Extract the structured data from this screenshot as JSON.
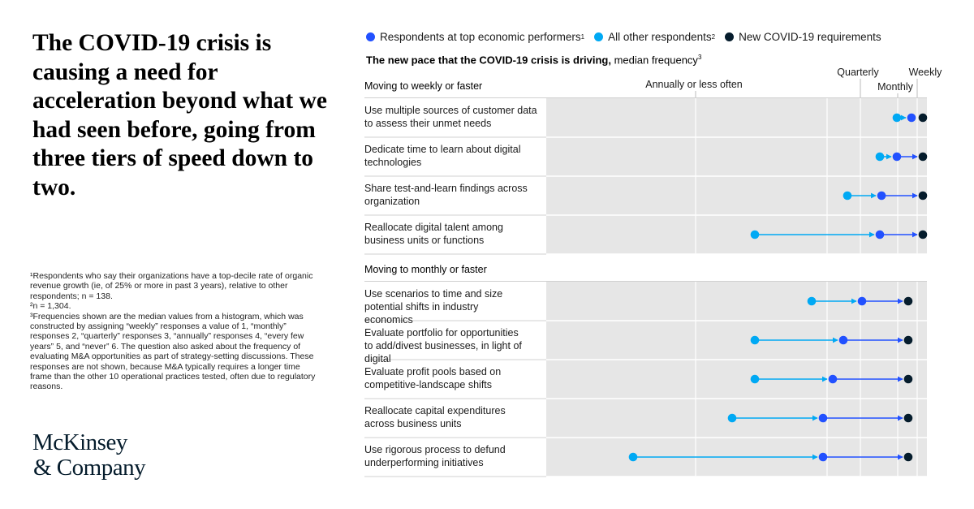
{
  "headline": "The COVID-19 crisis is causing a need for acceleration beyond what we had seen before, going from three tiers of speed down to two.",
  "footnotes": [
    {
      "text": "¹Respondents who say their organizations have a top-decile rate of organic revenue growth (ie, of 25% or more in past 3 years), relative to other respondents; n = 138."
    },
    {
      "text": "²n = 1,304."
    },
    {
      "text": "³Frequencies shown are the median values from a histogram, which was constructed by assigning “weekly” responses a value of 1, “monthly” responses 2, “quarterly” responses 3, “annually” responses 4, “every few years” 5, and “never” 6. The question also asked about the frequency of evaluating M&A opportunities as part of strategy-setting discussions. These responses are not shown, because M&A typically requires a longer time frame than the other 10 operational practices tested, often due to regulatory reasons."
    }
  ],
  "logo": {
    "line1": "McKinsey",
    "line2": "& Company"
  },
  "legend": [
    {
      "label": "Respondents at top economic performers",
      "sup": "1",
      "color": "#2251ff"
    },
    {
      "label": "All other respondents",
      "sup": "2",
      "color": "#00a9f4"
    },
    {
      "label": "New COVID-19 requirements",
      "sup": "",
      "color": "#051c2c"
    }
  ],
  "subtitle": {
    "bold": "The new pace that the COVID-19 crisis is driving,",
    "normal": " median frequency",
    "sup": "3"
  },
  "colors": {
    "top": "#2251ff",
    "other": "#00a9f4",
    "new": "#051c2c",
    "band": "#e6e6e6",
    "divider": "#d0d0d0"
  },
  "chart_data": {
    "type": "dot-arrow",
    "x_scale": "frequency (1 = weekly, 2 = monthly, 3 = quarterly, 4 = annually or less often)",
    "xlim": [
      4.8,
      0.94
    ],
    "tick_labels": [
      {
        "label": "Annually or less often",
        "value": 4.0
      },
      {
        "label": "Quarterly",
        "value": 3.0
      },
      {
        "label": "Monthly",
        "value": 2.0
      },
      {
        "label": "Weekly",
        "value": 1.0
      }
    ],
    "series": [
      {
        "name": "Respondents at top economic performers",
        "key": "top"
      },
      {
        "name": "All other respondents",
        "key": "other"
      },
      {
        "name": "New COVID-19 requirements",
        "key": "new"
      }
    ],
    "groups": [
      {
        "title": "Moving to weekly or faster",
        "rows": [
          {
            "label": "Use multiple sources of customer data to assess their unmet needs",
            "other": 1.5,
            "top": 1.25,
            "new": 1.0
          },
          {
            "label": "Dedicate time to learn about digital technologies",
            "other": 2.0,
            "top": 1.5,
            "new": 1.0
          },
          {
            "label": "Share test-and-learn findings across organization",
            "other": 2.6,
            "top": 1.95,
            "new": 1.0
          },
          {
            "label": "Reallocate digital talent among business units or functions",
            "other": 4.15,
            "top": 2.0,
            "new": 1.0
          }
        ]
      },
      {
        "title": "Moving to monthly or faster",
        "rows": [
          {
            "label": "Use scenarios to time and size potential shifts in industry economics",
            "other": 3.15,
            "top": 2.35,
            "new": 1.2
          },
          {
            "label": "Evaluate portfolio for opportunities to add/divest businesses, in light of digital",
            "other": 4.15,
            "top": 2.75,
            "new": 1.2
          },
          {
            "label": "Evaluate profit pools based on competitive-landscape shifts",
            "other": 4.15,
            "top": 2.9,
            "new": 1.2
          },
          {
            "label": "Reallocate capital expenditures across business units",
            "other": 4.5,
            "top": 3.1,
            "new": 1.2
          },
          {
            "label": "Use rigorous process to defund underperforming initiatives",
            "other": 6.0,
            "top": 3.1,
            "new": 1.2
          }
        ]
      }
    ]
  }
}
